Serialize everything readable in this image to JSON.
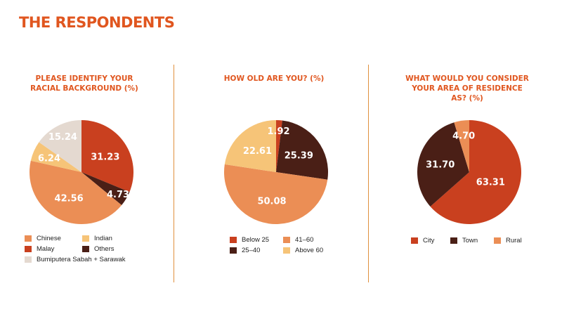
{
  "page_title": "THE RESPONDENTS",
  "chart_data": [
    {
      "type": "pie",
      "title_lines": [
        "PLEASE IDENTIFY YOUR",
        "RACIAL BACKGROUND (%)"
      ],
      "slices": [
        {
          "label": "Malay",
          "value": 31.23,
          "color": "#c9401f"
        },
        {
          "label": "Others",
          "value": 4.73,
          "color": "#4a1f16"
        },
        {
          "label": "Chinese",
          "value": 42.56,
          "color": "#eb8e55"
        },
        {
          "label": "Indian",
          "value": 6.24,
          "color": "#f6c478"
        },
        {
          "label": "Bumiputera Sabah + Sarawak",
          "value": 15.24,
          "color": "#e4d9d0"
        }
      ],
      "legend": [
        {
          "label": "Chinese",
          "color": "#eb8e55"
        },
        {
          "label": "Indian",
          "color": "#f6c478"
        },
        {
          "label": "Malay",
          "color": "#c9401f"
        },
        {
          "label": "Others",
          "color": "#4a1f16"
        },
        {
          "label": "Bumiputera Sabah + Sarawak",
          "color": "#e4d9d0"
        }
      ]
    },
    {
      "type": "pie",
      "title_lines": [
        "HOW OLD ARE YOU? (%)"
      ],
      "slices": [
        {
          "label": "Below 25",
          "value": 1.92,
          "color": "#c9401f"
        },
        {
          "label": "25–40",
          "value": 25.39,
          "color": "#4a1f16"
        },
        {
          "label": "41–60",
          "value": 50.08,
          "color": "#eb8e55"
        },
        {
          "label": "Above 60",
          "value": 22.61,
          "color": "#f6c478"
        }
      ],
      "legend": [
        {
          "label": "Below 25",
          "color": "#c9401f"
        },
        {
          "label": "41–60",
          "color": "#eb8e55"
        },
        {
          "label": "25–40",
          "color": "#4a1f16"
        },
        {
          "label": "Above 60",
          "color": "#f6c478"
        }
      ]
    },
    {
      "type": "pie",
      "title_lines": [
        "WHAT WOULD YOU CONSIDER",
        "YOUR AREA OF RESIDENCE",
        "AS? (%)"
      ],
      "slices": [
        {
          "label": "City",
          "value": 63.31,
          "color": "#c9401f"
        },
        {
          "label": "Town",
          "value": 31.7,
          "color": "#4a1f16"
        },
        {
          "label": "Rural",
          "value": 4.7,
          "color": "#eb8e55"
        }
      ],
      "legend": [
        {
          "label": "City",
          "color": "#c9401f"
        },
        {
          "label": "Town",
          "color": "#4a1f16"
        },
        {
          "label": "Rural",
          "color": "#eb8e55"
        }
      ]
    }
  ]
}
